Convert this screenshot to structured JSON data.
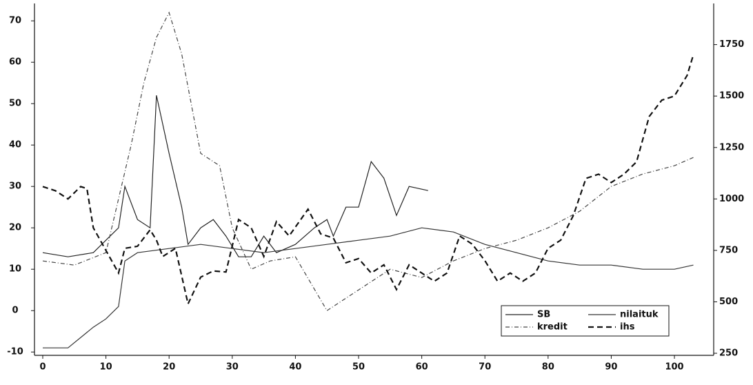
{
  "chart_data": {
    "type": "line",
    "xlim": [
      0,
      106
    ],
    "xticks": [
      0,
      10,
      20,
      30,
      40,
      50,
      60,
      70,
      80,
      90,
      100
    ],
    "ylim": [
      -10.8,
      74.2
    ],
    "yticks": [
      70,
      60,
      50,
      40,
      30,
      20,
      10,
      0,
      -10
    ],
    "y2lim": [
      240,
      1950
    ],
    "y2ticks": [
      1750,
      1500,
      1250,
      1000,
      750,
      500,
      250
    ],
    "legend": "lower right",
    "series": [
      {
        "name": "SB",
        "color": "#222222",
        "dash": "solid",
        "x": [
          0,
          4,
          8,
          10,
          12,
          13,
          15,
          17,
          18,
          20,
          22,
          23,
          25,
          27,
          29,
          31,
          33,
          35,
          37,
          40,
          43,
          45,
          46,
          48,
          50,
          52,
          54,
          56,
          58,
          61
        ],
        "values": [
          14,
          13,
          14,
          17,
          20,
          30,
          22,
          20,
          52,
          38,
          25,
          16,
          20,
          22,
          18,
          13,
          13,
          18,
          14,
          16,
          20,
          22,
          18,
          25,
          25,
          36,
          32,
          23,
          30,
          29
        ]
      },
      {
        "name": "nilaituk",
        "color": "#333333",
        "dash": "solid",
        "x": [
          0,
          4,
          8,
          10,
          12,
          13,
          15,
          20,
          25,
          30,
          35,
          40,
          45,
          50,
          55,
          60,
          65,
          70,
          75,
          80,
          85,
          90,
          95,
          100,
          103
        ],
        "values": [
          -9,
          -9,
          -4,
          -2,
          1,
          12,
          14,
          15,
          16,
          15,
          14,
          15,
          16,
          17,
          18,
          20,
          19,
          16,
          14,
          12,
          11,
          11,
          10,
          10,
          11
        ]
      },
      {
        "name": "kredit",
        "color": "#444444",
        "dash": "dashdot",
        "x": [
          0,
          5,
          10,
          14,
          16,
          18,
          20,
          22,
          25,
          28,
          30,
          33,
          36,
          40,
          45,
          50,
          55,
          60,
          65,
          70,
          75,
          80,
          85,
          90,
          95,
          100,
          103
        ],
        "values": [
          12,
          11,
          14,
          40,
          55,
          66,
          72,
          62,
          38,
          35,
          20,
          10,
          12,
          13,
          0,
          5,
          10,
          8,
          12,
          15,
          17,
          20,
          24,
          30,
          33,
          35,
          37
        ]
      },
      {
        "name": "ihs",
        "color": "#111111",
        "dash": "dashed",
        "axis": "y2",
        "x": [
          0,
          2,
          4,
          6,
          7,
          8,
          10,
          12,
          13,
          15,
          17,
          18,
          19,
          21,
          23,
          25,
          27,
          29,
          31,
          33,
          35,
          37,
          39,
          42,
          44,
          46,
          48,
          50,
          52,
          54,
          56,
          58,
          60,
          62,
          64,
          66,
          68,
          70,
          72,
          74,
          76,
          78,
          80,
          82,
          84,
          86,
          88,
          90,
          92,
          94,
          96,
          98,
          100,
          102,
          103
        ],
        "values": [
          1060,
          1040,
          1000,
          1060,
          1050,
          860,
          750,
          640,
          760,
          770,
          850,
          800,
          720,
          760,
          490,
          620,
          650,
          645,
          900,
          860,
          720,
          890,
          820,
          950,
          830,
          810,
          690,
          710,
          640,
          680,
          560,
          680,
          640,
          600,
          640,
          820,
          780,
          700,
          600,
          640,
          600,
          640,
          760,
          800,
          920,
          1100,
          1120,
          1080,
          1120,
          1180,
          1400,
          1480,
          1500,
          1600,
          1700
        ]
      }
    ]
  }
}
